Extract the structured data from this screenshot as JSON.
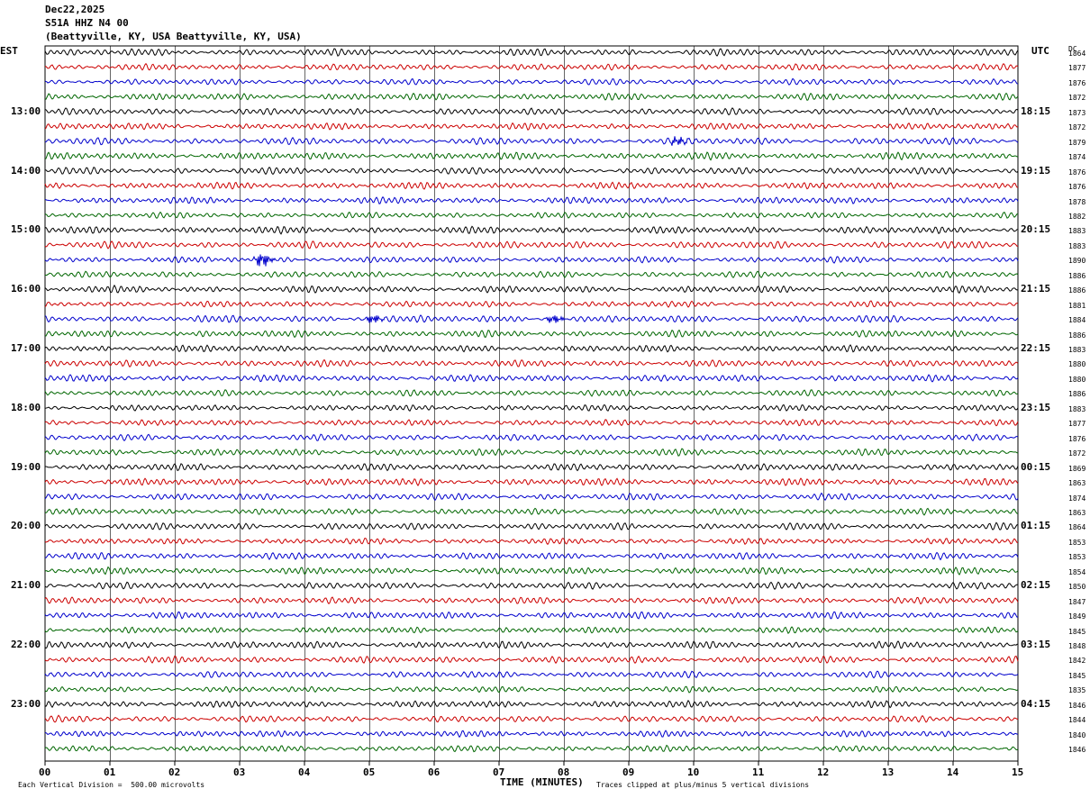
{
  "header": {
    "date": "Dec22,2025",
    "station": "S51A HHZ N4 00",
    "location": "(Beattyville, KY, USA Beattyville, KY, USA)"
  },
  "left_label": "EST",
  "right_label": "UTC",
  "dc_label": "DC",
  "xlabel": "TIME (MINUTES)",
  "footer_left": "Each Vertical Division =  500.00 microvolts",
  "footer_right": "Traces clipped at plus/minus 5 vertical divisions",
  "colors": {
    "trace_cycle": [
      "#000000",
      "#cc0000",
      "#0000cc",
      "#006600"
    ],
    "grid": "#000000"
  },
  "chart_data": {
    "type": "line",
    "title": "",
    "xlim": [
      0,
      15
    ],
    "x_ticks": [
      "00",
      "01",
      "02",
      "03",
      "04",
      "05",
      "06",
      "07",
      "08",
      "09",
      "10",
      "11",
      "12",
      "13",
      "14",
      "15"
    ],
    "trace_count": 48,
    "traces_per_hour": 4,
    "est_hour_labels": [
      "13:00",
      "14:00",
      "15:00",
      "16:00",
      "17:00",
      "18:00",
      "19:00",
      "20:00",
      "21:00",
      "22:00",
      "23:00"
    ],
    "utc_hour_labels": [
      "18:15",
      "19:15",
      "20:15",
      "21:15",
      "22:15",
      "23:15",
      "00:15",
      "01:15",
      "02:15",
      "03:15",
      "04:15"
    ],
    "dc_offsets": [
      1864,
      1877,
      1876,
      1872,
      1873,
      1872,
      1879,
      1874,
      1876,
      1876,
      1878,
      1882,
      1883,
      1883,
      1890,
      1886,
      1886,
      1881,
      1884,
      1886,
      1883,
      1880,
      1880,
      1886,
      1883,
      1877,
      1876,
      1872,
      1869,
      1863,
      1874,
      1863,
      1864,
      1853,
      1853,
      1854,
      1850,
      1847,
      1849,
      1845,
      1848,
      1842,
      1845,
      1835,
      1846,
      1844,
      1840,
      1846
    ],
    "events": [
      {
        "trace": 6,
        "minute": 9.7,
        "scale": 1.4
      },
      {
        "trace": 14,
        "minute": 3.3,
        "scale": 2.2
      },
      {
        "trace": 18,
        "minute": 5.0,
        "scale": 1.3
      },
      {
        "trace": 18,
        "minute": 7.8,
        "scale": 1.3
      }
    ]
  }
}
